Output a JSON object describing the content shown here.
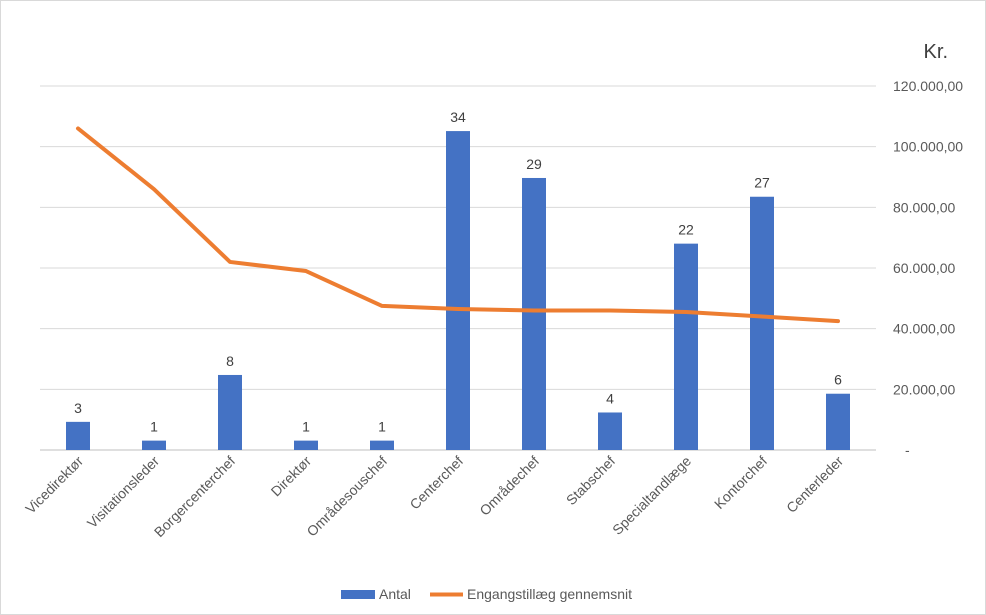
{
  "chart_data": {
    "type": "bar",
    "title": "",
    "xlabel": "",
    "ylabel": "",
    "unit_label": "Kr.",
    "categories": [
      "Vicedirektør",
      "Visitationsleder",
      "Borgercenterchef",
      "Direktør",
      "Områdesouschef",
      "Centerchef",
      "Områdechef",
      "Stabschef",
      "Specialtandlæge",
      "Kontorchef",
      "Centerleder"
    ],
    "series": [
      {
        "name": "Antal",
        "type": "bar",
        "axis": "left",
        "color": "#4472c4",
        "values": [
          3,
          1,
          8,
          1,
          1,
          34,
          29,
          4,
          22,
          27,
          6
        ]
      },
      {
        "name": "Engangstillæg gennemsnit",
        "type": "line",
        "axis": "right",
        "color": "#ed7d31",
        "values": [
          106000,
          86000,
          62000,
          59000,
          47500,
          46500,
          46000,
          46000,
          45500,
          44000,
          42500
        ]
      }
    ],
    "ylim_left": [
      0,
      35
    ],
    "ylim_right": [
      0,
      120000
    ],
    "right_ticks": [
      "-",
      "20.000,00",
      "40.000,00",
      "60.000,00",
      "80.000,00",
      "100.000,00",
      "120.000,00"
    ],
    "grid": true,
    "legend_position": "bottom"
  }
}
